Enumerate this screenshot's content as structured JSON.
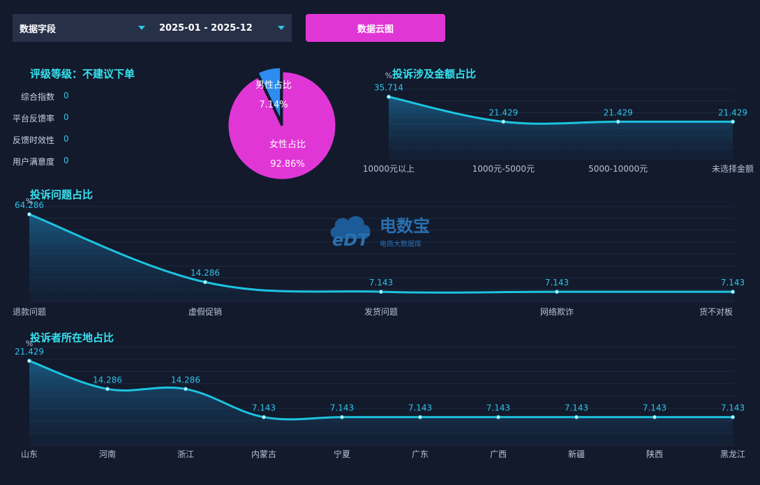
{
  "filters": {
    "field_select": "数据字段",
    "date_range": "2025-01 - 2025-12",
    "cloud_button": "数据云图"
  },
  "rating": {
    "title": "评级等级：不建议下单",
    "metrics": [
      {
        "label": "综合指数",
        "value": "0"
      },
      {
        "label": "平台反馈率",
        "value": "0"
      },
      {
        "label": "反馈时效性",
        "value": "0"
      },
      {
        "label": "用户满意度",
        "value": "0"
      }
    ]
  },
  "watermark": {
    "logo_text": "eDT",
    "name": "电数宝",
    "subtitle": "电商大数据库"
  },
  "colors": {
    "background": "#121a2c",
    "accent": "#37e3f0",
    "line": "#1cc4e0",
    "pink": "#e136d6",
    "blue": "#2e8cf0"
  },
  "chart_data": [
    {
      "type": "pie",
      "categories": [
        "男性占比",
        "女性占比"
      ],
      "values": [
        7.14,
        92.86
      ],
      "value_labels": [
        "7.14%",
        "92.86%"
      ],
      "colors": [
        "#2e8cf0",
        "#e136d6"
      ]
    },
    {
      "type": "area",
      "title": "投诉涉及金额占比",
      "ylabel": "%",
      "categories": [
        "10000元以上",
        "1000元-5000元",
        "5000-10000元",
        "未选择金额"
      ],
      "values": [
        35.714,
        21.429,
        21.429,
        21.429
      ],
      "value_labels": [
        "35.714",
        "21.429",
        "21.429",
        "21.429"
      ],
      "ylim": [
        0,
        40
      ]
    },
    {
      "type": "area",
      "title": "投诉问题占比",
      "ylabel": "%",
      "categories": [
        "退款问题",
        "虚假促销",
        "发货问题",
        "网络欺诈",
        "货不对板"
      ],
      "values": [
        64.286,
        14.286,
        7.143,
        7.143,
        7.143
      ],
      "value_labels": [
        "64.286",
        "14.286",
        "7.143",
        "7.143",
        "7.143"
      ],
      "ylim": [
        0,
        70
      ]
    },
    {
      "type": "area",
      "title": "投诉者所在地占比",
      "ylabel": "%",
      "categories": [
        "山东",
        "河南",
        "浙江",
        "内蒙古",
        "宁夏",
        "广东",
        "广西",
        "新疆",
        "陕西",
        "黑龙江"
      ],
      "values": [
        21.429,
        14.286,
        14.286,
        7.143,
        7.143,
        7.143,
        7.143,
        7.143,
        7.143,
        7.143
      ],
      "value_labels": [
        "21.429",
        "14.286",
        "14.286",
        "7.143",
        "7.143",
        "7.143",
        "7.143",
        "7.143",
        "7.143",
        "7.143"
      ],
      "ylim": [
        0,
        25
      ]
    }
  ]
}
